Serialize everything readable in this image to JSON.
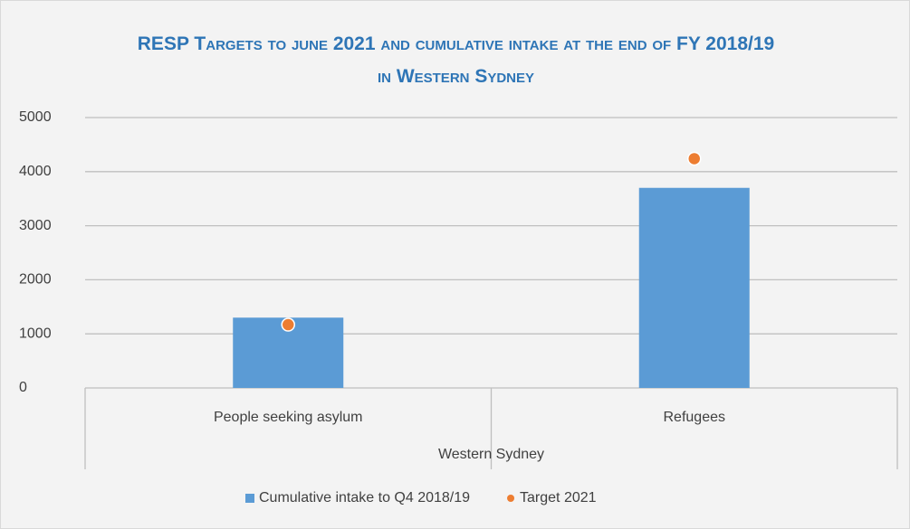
{
  "chart_data": {
    "type": "bar",
    "title": "RESP Targets to june 2021 and cumulative intake at the end of FY 2018/19 in Western Sydney",
    "categories": [
      "People seeking asylum",
      "Refugees"
    ],
    "group_label": "Western Sydney",
    "series": [
      {
        "name": "Cumulative intake to Q4 2018/19",
        "type": "bar",
        "color": "#5b9bd5",
        "values": [
          1300,
          3700
        ]
      },
      {
        "name": "Target 2021",
        "type": "scatter",
        "color": "#ed7d31",
        "values": [
          1170,
          4240
        ]
      }
    ],
    "ylim": [
      0,
      5000
    ],
    "yticks": [
      0,
      1000,
      2000,
      3000,
      4000,
      5000
    ],
    "grid": true,
    "legend": "bottom"
  }
}
